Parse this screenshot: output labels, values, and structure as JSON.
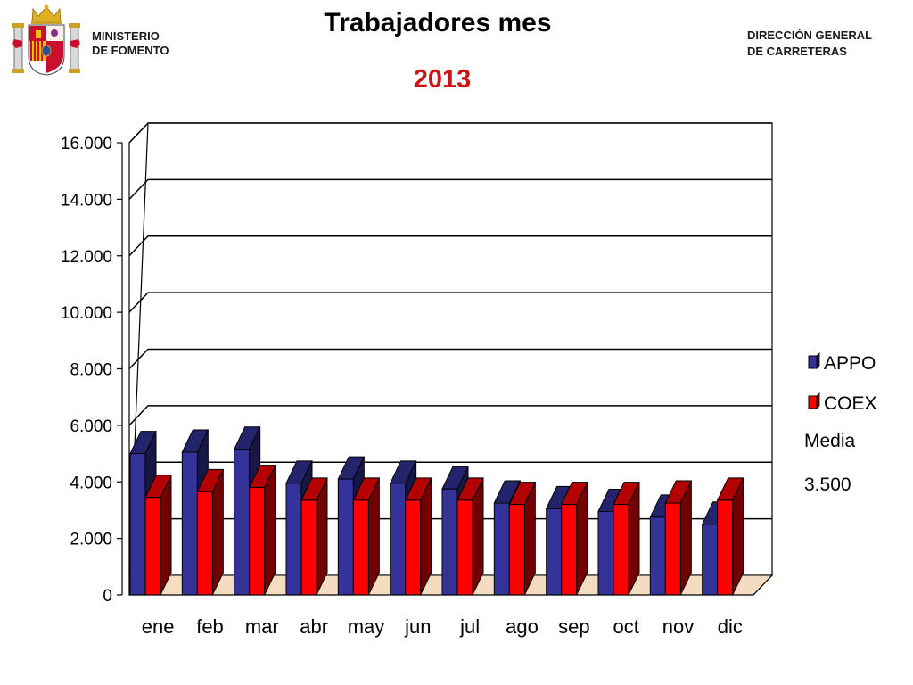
{
  "header": {
    "ministry_line1": "MINISTERIO",
    "ministry_line2": "DE FOMENTO",
    "direction_line1": "DIRECCIÓN GENERAL",
    "direction_line2": "DE CARRETERAS",
    "crest_icon": "spanish-coat-of-arms-icon"
  },
  "chart_data": {
    "type": "bar",
    "title": "Trabajadores mes",
    "subtitle": "2013",
    "categories": [
      "ene",
      "feb",
      "mar",
      "abr",
      "may",
      "jun",
      "jul",
      "ago",
      "sep",
      "oct",
      "nov",
      "dic"
    ],
    "series": [
      {
        "name": "APPO",
        "color": "#33339a",
        "values": [
          5000,
          5050,
          5150,
          3950,
          4100,
          3950,
          3750,
          3250,
          3050,
          2950,
          2750,
          2500
        ]
      },
      {
        "name": "COEX",
        "color": "#ff0000",
        "values": [
          3450,
          3650,
          3800,
          3350,
          3350,
          3350,
          3350,
          3200,
          3200,
          3200,
          3250,
          3350
        ]
      }
    ],
    "ylim": [
      0,
      16000
    ],
    "yticks": [
      {
        "value": 0,
        "label": "0"
      },
      {
        "value": 2000,
        "label": "2.000"
      },
      {
        "value": 4000,
        "label": "4.000"
      },
      {
        "value": 6000,
        "label": "6.000"
      },
      {
        "value": 8000,
        "label": "8.000"
      },
      {
        "value": 10000,
        "label": "10.000"
      },
      {
        "value": 12000,
        "label": "12.000"
      },
      {
        "value": 14000,
        "label": "14.000"
      },
      {
        "value": 16000,
        "label": "16.000"
      }
    ],
    "xlabel": "",
    "ylabel": "",
    "grid": true,
    "legend": "right",
    "note": {
      "label": "Media",
      "value": "3.500"
    }
  }
}
